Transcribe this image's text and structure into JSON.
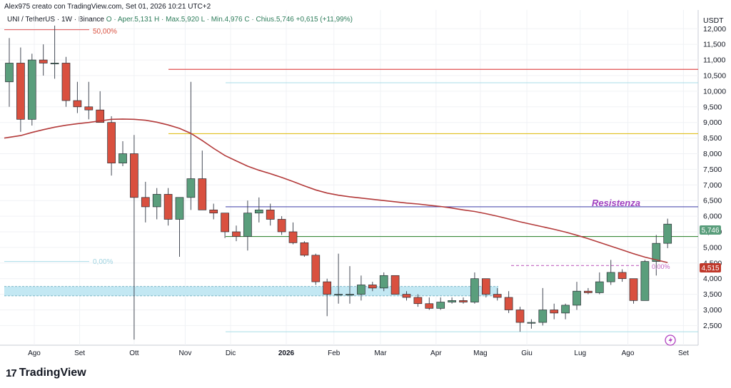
{
  "header": {
    "author_line": "Alex975 creato con TradingView.com, Set 01, 2026 10:21 UTC+2",
    "symbol": "UNI / TetherUS · 1W · Binance",
    "ohlc": "O · Aper.5,131  H · Max.5,920  L · Min.4,976  C · Chius.5,746  +0,615 (+11,99%)"
  },
  "currency": "USDT",
  "logo": "TradingView",
  "annotations": {
    "fib_50": "50,00%",
    "fib_0": "0,00%",
    "resistance": "Resistenza",
    "ma_label": "0,00%"
  },
  "price_badges": {
    "last": "5,746",
    "ma": "4,515"
  },
  "colors": {
    "up": "#5a9e7c",
    "down": "#d9503f",
    "ma": "#b33a3a",
    "red_line": "#e05050",
    "yellow_line": "#e0c020",
    "blue_line": "#5050b0",
    "green_line": "#3a8a3a",
    "cyan_line": "#a8dce8",
    "zone": "#bde6f2"
  },
  "chart_data": {
    "type": "candlestick",
    "x_tick_labels": [
      "Ago",
      "Set",
      "Ott",
      "Nov",
      "Dic",
      "2026",
      "Feb",
      "Mar",
      "Apr",
      "Mag",
      "Giu",
      "Lug",
      "Ago",
      "Set"
    ],
    "y_tick_labels": [
      "12,000",
      "11,500",
      "11,000",
      "10,500",
      "10,000",
      "9,500",
      "9,000",
      "8,500",
      "8,000",
      "7,500",
      "7,000",
      "6,500",
      "6,000",
      "5,500",
      "5,000",
      "4,500",
      "4,000",
      "3,500",
      "3,000",
      "2,500"
    ],
    "y_ticks": [
      12000,
      11500,
      11000,
      10500,
      10000,
      9500,
      9000,
      8500,
      8000,
      7500,
      7000,
      6500,
      6000,
      5500,
      5000,
      4500,
      4000,
      3500,
      3000,
      2500
    ],
    "ylim": [
      1870,
      12600
    ],
    "levels": {
      "red": 10700,
      "cyan_top": 10270,
      "yellow": 8640,
      "blue": 6300,
      "green": 5350,
      "dashed_magenta": 4420,
      "cyan_bottom": 2300,
      "zone_top": 3750,
      "zone_bottom": 3450,
      "fib_50_level": 11970,
      "fib_0_level": 4550
    },
    "candles": [
      {
        "o": 10300,
        "h": 11700,
        "l": 9500,
        "c": 10900
      },
      {
        "o": 10900,
        "h": 11400,
        "l": 8700,
        "c": 9100
      },
      {
        "o": 9100,
        "h": 11200,
        "l": 8900,
        "c": 11000
      },
      {
        "o": 11000,
        "h": 11500,
        "l": 10500,
        "c": 10900
      },
      {
        "o": 10900,
        "h": 12100,
        "l": 10400,
        "c": 10900
      },
      {
        "o": 10900,
        "h": 11100,
        "l": 9500,
        "c": 9700
      },
      {
        "o": 9700,
        "h": 10300,
        "l": 9300,
        "c": 9500
      },
      {
        "o": 9500,
        "h": 10300,
        "l": 9100,
        "c": 9400
      },
      {
        "o": 9400,
        "h": 10000,
        "l": 9000,
        "c": 9000
      },
      {
        "o": 9000,
        "h": 9200,
        "l": 7300,
        "c": 7700
      },
      {
        "o": 7700,
        "h": 8400,
        "l": 7600,
        "c": 8000
      },
      {
        "o": 8000,
        "h": 8600,
        "l": 2050,
        "c": 6600
      },
      {
        "o": 6600,
        "h": 7100,
        "l": 5800,
        "c": 6300
      },
      {
        "o": 6300,
        "h": 6900,
        "l": 5900,
        "c": 6700
      },
      {
        "o": 6700,
        "h": 6900,
        "l": 5700,
        "c": 5900
      },
      {
        "o": 5900,
        "h": 6600,
        "l": 4700,
        "c": 6600
      },
      {
        "o": 6600,
        "h": 10300,
        "l": 6200,
        "c": 7200
      },
      {
        "o": 7200,
        "h": 8100,
        "l": 6200,
        "c": 6200
      },
      {
        "o": 6200,
        "h": 6400,
        "l": 5900,
        "c": 6100
      },
      {
        "o": 6100,
        "h": 6100,
        "l": 5300,
        "c": 5500
      },
      {
        "o": 5500,
        "h": 5700,
        "l": 5200,
        "c": 5350
      },
      {
        "o": 5350,
        "h": 6500,
        "l": 4900,
        "c": 6100
      },
      {
        "o": 6100,
        "h": 6600,
        "l": 5800,
        "c": 6200
      },
      {
        "o": 6200,
        "h": 6400,
        "l": 5700,
        "c": 5900
      },
      {
        "o": 5900,
        "h": 6000,
        "l": 5400,
        "c": 5500
      },
      {
        "o": 5500,
        "h": 5800,
        "l": 5100,
        "c": 5150
      },
      {
        "o": 5150,
        "h": 5200,
        "l": 4700,
        "c": 4750
      },
      {
        "o": 4750,
        "h": 4800,
        "l": 3800,
        "c": 3900
      },
      {
        "o": 3900,
        "h": 4000,
        "l": 2800,
        "c": 3500
      },
      {
        "o": 3500,
        "h": 4800,
        "l": 3200,
        "c": 3500
      },
      {
        "o": 3500,
        "h": 4400,
        "l": 3200,
        "c": 3500
      },
      {
        "o": 3500,
        "h": 4100,
        "l": 3300,
        "c": 3800
      },
      {
        "o": 3800,
        "h": 3900,
        "l": 3600,
        "c": 3700
      },
      {
        "o": 3700,
        "h": 4200,
        "l": 3600,
        "c": 4100
      },
      {
        "o": 4100,
        "h": 4100,
        "l": 3500,
        "c": 3500
      },
      {
        "o": 3500,
        "h": 3600,
        "l": 3300,
        "c": 3400
      },
      {
        "o": 3400,
        "h": 3500,
        "l": 3100,
        "c": 3200
      },
      {
        "o": 3200,
        "h": 3400,
        "l": 3000,
        "c": 3050
      },
      {
        "o": 3050,
        "h": 3400,
        "l": 3000,
        "c": 3250
      },
      {
        "o": 3250,
        "h": 3400,
        "l": 3200,
        "c": 3300
      },
      {
        "o": 3300,
        "h": 3400,
        "l": 3200,
        "c": 3250
      },
      {
        "o": 3250,
        "h": 4200,
        "l": 3200,
        "c": 4000
      },
      {
        "o": 4000,
        "h": 4000,
        "l": 3400,
        "c": 3500
      },
      {
        "o": 3500,
        "h": 3700,
        "l": 3300,
        "c": 3400
      },
      {
        "o": 3400,
        "h": 3600,
        "l": 2900,
        "c": 3000
      },
      {
        "o": 3000,
        "h": 3100,
        "l": 2300,
        "c": 2600
      },
      {
        "o": 2600,
        "h": 2700,
        "l": 2400,
        "c": 2600
      },
      {
        "o": 2600,
        "h": 3700,
        "l": 2500,
        "c": 3000
      },
      {
        "o": 3000,
        "h": 3200,
        "l": 2700,
        "c": 2900
      },
      {
        "o": 2900,
        "h": 3200,
        "l": 2700,
        "c": 3150
      },
      {
        "o": 3150,
        "h": 3900,
        "l": 3000,
        "c": 3600
      },
      {
        "o": 3600,
        "h": 3700,
        "l": 3500,
        "c": 3550
      },
      {
        "o": 3550,
        "h": 4200,
        "l": 3500,
        "c": 3900
      },
      {
        "o": 3900,
        "h": 4600,
        "l": 3800,
        "c": 4200
      },
      {
        "o": 4200,
        "h": 4300,
        "l": 3900,
        "c": 4000
      },
      {
        "o": 4000,
        "h": 4000,
        "l": 3200,
        "c": 3300
      },
      {
        "o": 3300,
        "h": 4600,
        "l": 3300,
        "c": 4550
      },
      {
        "o": 4550,
        "h": 5400,
        "l": 4100,
        "c": 5131
      },
      {
        "o": 5131,
        "h": 5920,
        "l": 4976,
        "c": 5746
      }
    ],
    "ma": [
      8500,
      8580,
      8680,
      8770,
      8850,
      8910,
      8960,
      9000,
      9050,
      9100,
      9110,
      9100,
      9070,
      9010,
      8920,
      8810,
      8650,
      8420,
      8170,
      7940,
      7770,
      7600,
      7470,
      7360,
      7240,
      7110,
      6970,
      6840,
      6740,
      6670,
      6620,
      6580,
      6540,
      6500,
      6460,
      6420,
      6390,
      6350,
      6310,
      6260,
      6200,
      6150,
      6080,
      6000,
      5910,
      5820,
      5740,
      5660,
      5580,
      5490,
      5390,
      5280,
      5160,
      5040,
      4920,
      4800,
      4690,
      4600,
      4515
    ]
  }
}
